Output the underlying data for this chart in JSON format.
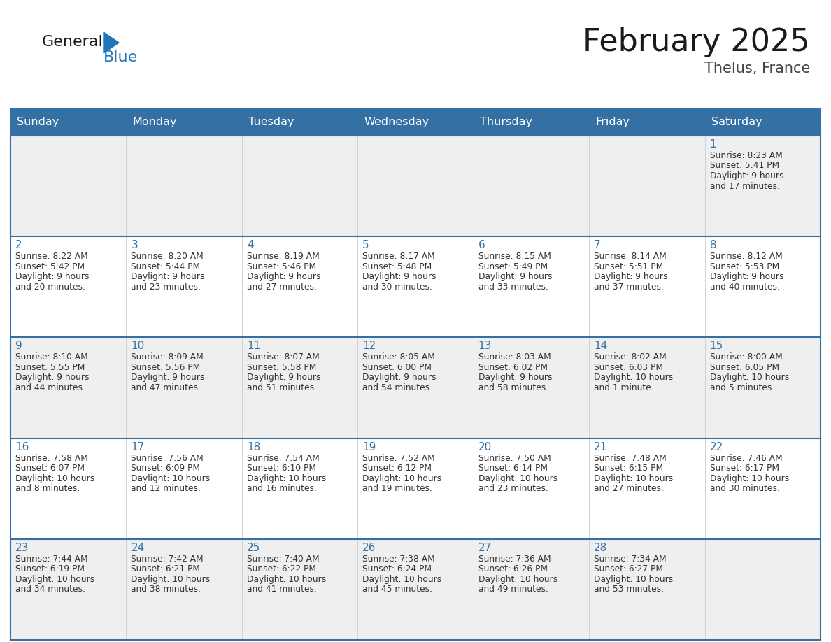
{
  "title": "February 2025",
  "subtitle": "Thelus, France",
  "days_of_week": [
    "Sunday",
    "Monday",
    "Tuesday",
    "Wednesday",
    "Thursday",
    "Friday",
    "Saturday"
  ],
  "header_bg": "#3470A3",
  "header_text_color": "#FFFFFF",
  "cell_bg_odd": "#EFEFEF",
  "cell_bg_even": "#FFFFFF",
  "border_color": "#3470A3",
  "day_number_color": "#3470A3",
  "text_color": "#333333",
  "logo_black": "#1a1a1a",
  "logo_blue": "#2277BB",
  "calendar_data": [
    [
      null,
      null,
      null,
      null,
      null,
      null,
      {
        "day": "1",
        "sunrise": "8:23 AM",
        "sunset": "5:41 PM",
        "daylight": "9 hours",
        "daylight2": "and 17 minutes."
      }
    ],
    [
      {
        "day": "2",
        "sunrise": "8:22 AM",
        "sunset": "5:42 PM",
        "daylight": "9 hours",
        "daylight2": "and 20 minutes."
      },
      {
        "day": "3",
        "sunrise": "8:20 AM",
        "sunset": "5:44 PM",
        "daylight": "9 hours",
        "daylight2": "and 23 minutes."
      },
      {
        "day": "4",
        "sunrise": "8:19 AM",
        "sunset": "5:46 PM",
        "daylight": "9 hours",
        "daylight2": "and 27 minutes."
      },
      {
        "day": "5",
        "sunrise": "8:17 AM",
        "sunset": "5:48 PM",
        "daylight": "9 hours",
        "daylight2": "and 30 minutes."
      },
      {
        "day": "6",
        "sunrise": "8:15 AM",
        "sunset": "5:49 PM",
        "daylight": "9 hours",
        "daylight2": "and 33 minutes."
      },
      {
        "day": "7",
        "sunrise": "8:14 AM",
        "sunset": "5:51 PM",
        "daylight": "9 hours",
        "daylight2": "and 37 minutes."
      },
      {
        "day": "8",
        "sunrise": "8:12 AM",
        "sunset": "5:53 PM",
        "daylight": "9 hours",
        "daylight2": "and 40 minutes."
      }
    ],
    [
      {
        "day": "9",
        "sunrise": "8:10 AM",
        "sunset": "5:55 PM",
        "daylight": "9 hours",
        "daylight2": "and 44 minutes."
      },
      {
        "day": "10",
        "sunrise": "8:09 AM",
        "sunset": "5:56 PM",
        "daylight": "9 hours",
        "daylight2": "and 47 minutes."
      },
      {
        "day": "11",
        "sunrise": "8:07 AM",
        "sunset": "5:58 PM",
        "daylight": "9 hours",
        "daylight2": "and 51 minutes."
      },
      {
        "day": "12",
        "sunrise": "8:05 AM",
        "sunset": "6:00 PM",
        "daylight": "9 hours",
        "daylight2": "and 54 minutes."
      },
      {
        "day": "13",
        "sunrise": "8:03 AM",
        "sunset": "6:02 PM",
        "daylight": "9 hours",
        "daylight2": "and 58 minutes."
      },
      {
        "day": "14",
        "sunrise": "8:02 AM",
        "sunset": "6:03 PM",
        "daylight": "10 hours",
        "daylight2": "and 1 minute."
      },
      {
        "day": "15",
        "sunrise": "8:00 AM",
        "sunset": "6:05 PM",
        "daylight": "10 hours",
        "daylight2": "and 5 minutes."
      }
    ],
    [
      {
        "day": "16",
        "sunrise": "7:58 AM",
        "sunset": "6:07 PM",
        "daylight": "10 hours",
        "daylight2": "and 8 minutes."
      },
      {
        "day": "17",
        "sunrise": "7:56 AM",
        "sunset": "6:09 PM",
        "daylight": "10 hours",
        "daylight2": "and 12 minutes."
      },
      {
        "day": "18",
        "sunrise": "7:54 AM",
        "sunset": "6:10 PM",
        "daylight": "10 hours",
        "daylight2": "and 16 minutes."
      },
      {
        "day": "19",
        "sunrise": "7:52 AM",
        "sunset": "6:12 PM",
        "daylight": "10 hours",
        "daylight2": "and 19 minutes."
      },
      {
        "day": "20",
        "sunrise": "7:50 AM",
        "sunset": "6:14 PM",
        "daylight": "10 hours",
        "daylight2": "and 23 minutes."
      },
      {
        "day": "21",
        "sunrise": "7:48 AM",
        "sunset": "6:15 PM",
        "daylight": "10 hours",
        "daylight2": "and 27 minutes."
      },
      {
        "day": "22",
        "sunrise": "7:46 AM",
        "sunset": "6:17 PM",
        "daylight": "10 hours",
        "daylight2": "and 30 minutes."
      }
    ],
    [
      {
        "day": "23",
        "sunrise": "7:44 AM",
        "sunset": "6:19 PM",
        "daylight": "10 hours",
        "daylight2": "and 34 minutes."
      },
      {
        "day": "24",
        "sunrise": "7:42 AM",
        "sunset": "6:21 PM",
        "daylight": "10 hours",
        "daylight2": "and 38 minutes."
      },
      {
        "day": "25",
        "sunrise": "7:40 AM",
        "sunset": "6:22 PM",
        "daylight": "10 hours",
        "daylight2": "and 41 minutes."
      },
      {
        "day": "26",
        "sunrise": "7:38 AM",
        "sunset": "6:24 PM",
        "daylight": "10 hours",
        "daylight2": "and 45 minutes."
      },
      {
        "day": "27",
        "sunrise": "7:36 AM",
        "sunset": "6:26 PM",
        "daylight": "10 hours",
        "daylight2": "and 49 minutes."
      },
      {
        "day": "28",
        "sunrise": "7:34 AM",
        "sunset": "6:27 PM",
        "daylight": "10 hours",
        "daylight2": "and 53 minutes."
      },
      null
    ]
  ]
}
